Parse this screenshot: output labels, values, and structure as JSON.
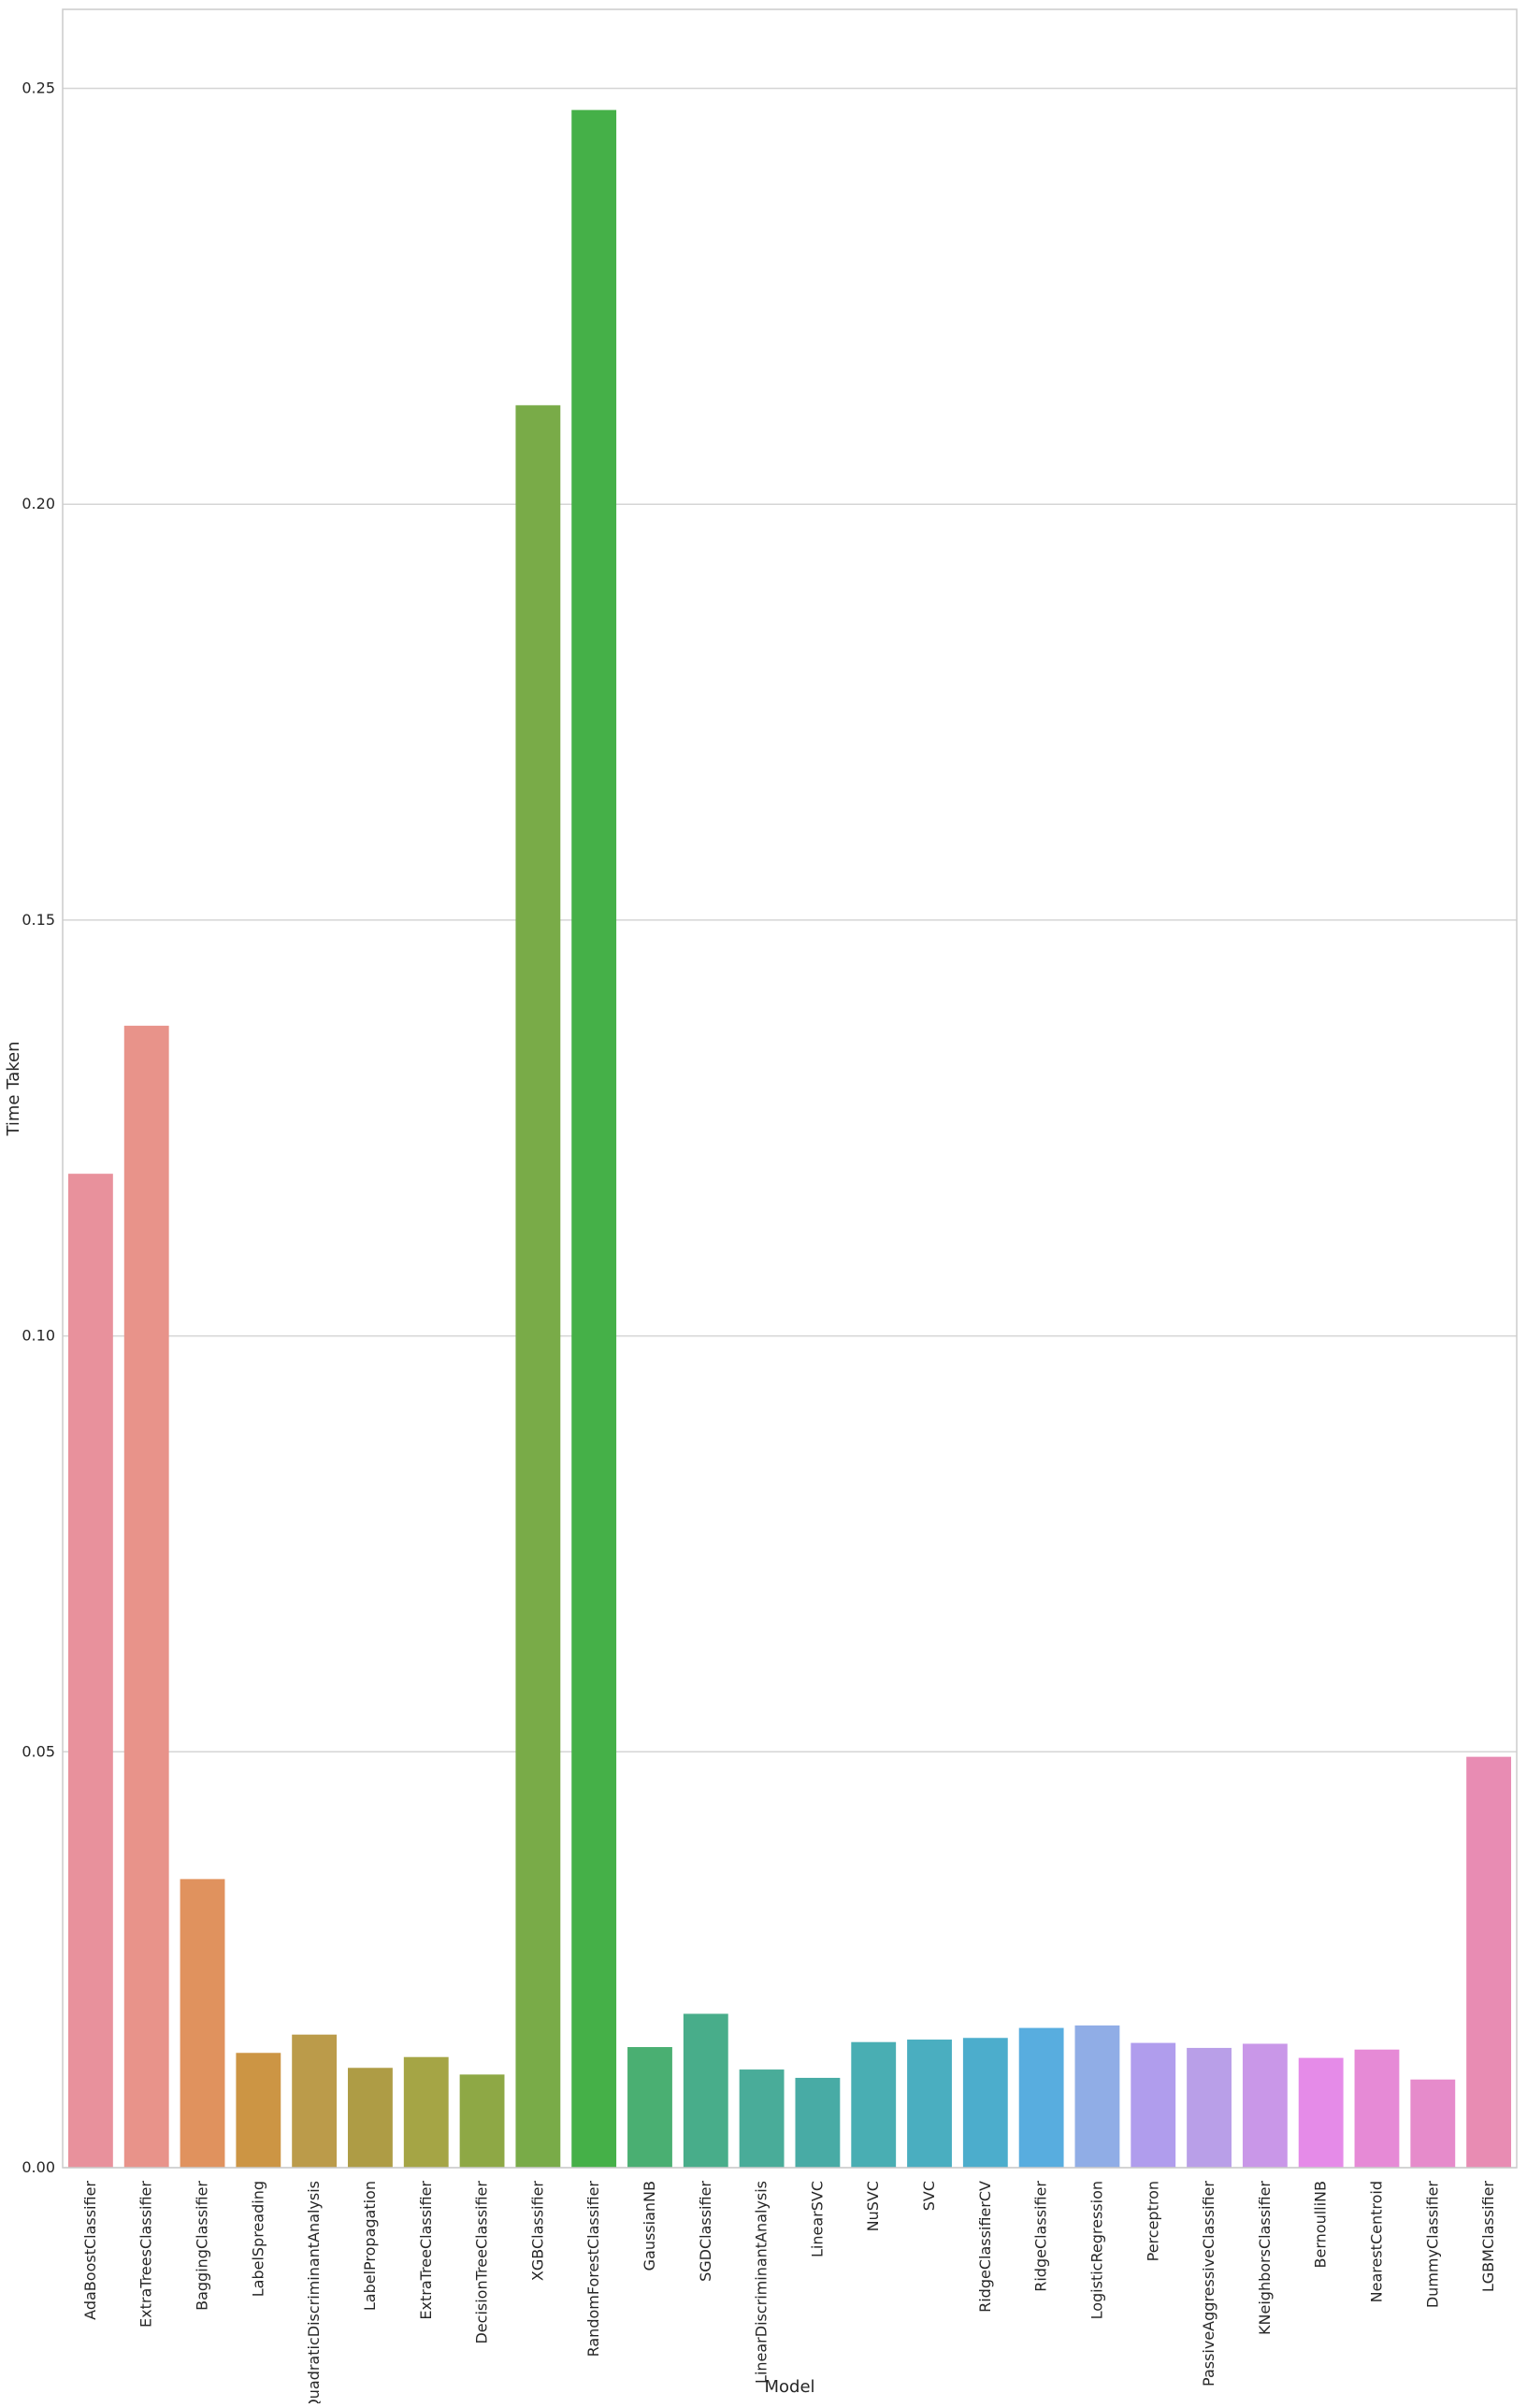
{
  "chart_data": {
    "type": "bar",
    "title": "",
    "xlabel": "Model",
    "ylabel": "Time Taken",
    "ylim": [
      0,
      0.2595
    ],
    "yticks": [
      "0.00",
      "0.05",
      "0.10",
      "0.15",
      "0.20",
      "0.25"
    ],
    "grid": true,
    "categories": [
      "AdaBoostClassifier",
      "ExtraTreesClassifier",
      "BaggingClassifier",
      "LabelSpreading",
      "QuadraticDiscriminantAnalysis",
      "LabelPropagation",
      "ExtraTreeClassifier",
      "DecisionTreeClassifier",
      "XGBClassifier",
      "RandomForestClassifier",
      "GaussianNB",
      "SGDClassifier",
      "LinearDiscriminantAnalysis",
      "LinearSVC",
      "NuSVC",
      "SVC",
      "RidgeClassifierCV",
      "RidgeClassifier",
      "LogisticRegression",
      "Perceptron",
      "PassiveAggressiveClassifier",
      "KNeighborsClassifier",
      "BernoulliNB",
      "NearestCentroid",
      "DummyClassifier",
      "LGBMClassifier"
    ],
    "values": [
      0.1195,
      0.1373,
      0.0347,
      0.0138,
      0.016,
      0.012,
      0.0133,
      0.0112,
      0.2119,
      0.2474,
      0.0145,
      0.0185,
      0.0118,
      0.0108,
      0.0151,
      0.0154,
      0.0156,
      0.0168,
      0.0171,
      0.015,
      0.0144,
      0.0149,
      0.0132,
      0.0142,
      0.0106,
      0.0494
    ],
    "colors": [
      "#e8919c",
      "#e8938a",
      "#e0925e",
      "#cc9544",
      "#bb9b4a",
      "#ae9c45",
      "#a5a545",
      "#8ea845",
      "#79ab48",
      "#45b048",
      "#4aaf72",
      "#48ad8a",
      "#49ac99",
      "#48aba5",
      "#49aeb3",
      "#4aaec0",
      "#4cadcc",
      "#58addf",
      "#90ade6",
      "#b09ded",
      "#b99fe8",
      "#c997e8",
      "#e58be8",
      "#e68ad6",
      "#e68bcb",
      "#e88cb3"
    ]
  }
}
